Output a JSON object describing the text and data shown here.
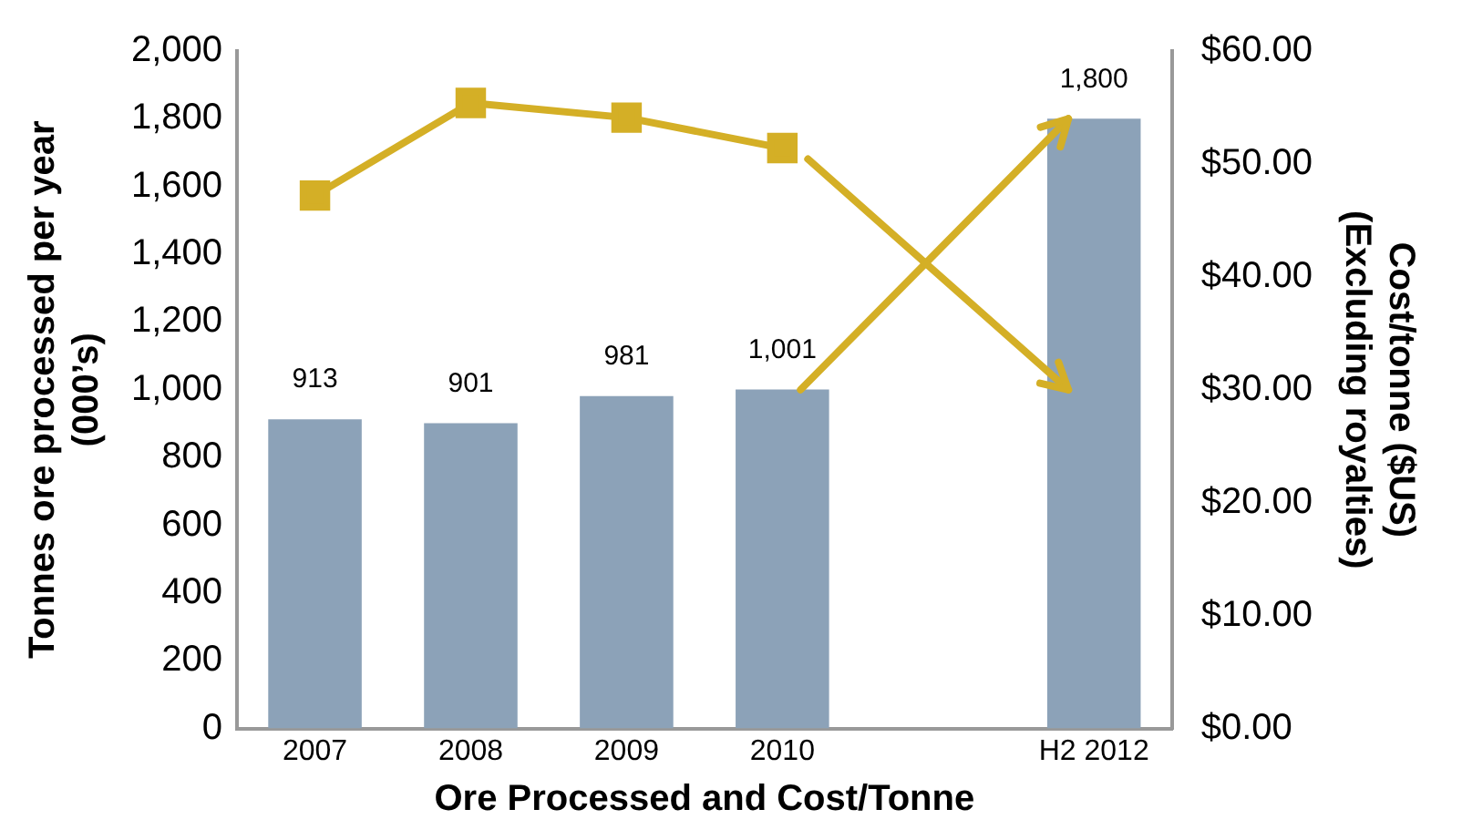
{
  "chart_data": {
    "type": "bar",
    "xlabel": "Ore Processed and Cost/Tonne",
    "ylabel": "Tonnes ore processed per year\n(000’s)",
    "y2label": "Cost/tonne ($US)\n(Excluding royalties)",
    "categories": [
      "2007",
      "2008",
      "2009",
      "2010",
      null,
      "H2 2012"
    ],
    "series": [
      {
        "color": "#8ca2b8",
        "values": [
          913,
          901,
          981,
          1001,
          null,
          1800
        ],
        "value_labels": [
          "913",
          "901",
          "981",
          "1,001",
          null,
          "1,800"
        ]
      },
      {
        "type": "line",
        "axis": "y2",
        "color": "#d4af26",
        "marker": "square",
        "values": [
          47.2,
          55.4,
          54.1,
          51.4,
          null,
          null
        ]
      }
    ],
    "ylim": [
      0,
      2000
    ],
    "yticks": [
      {
        "value": 0,
        "label": "0"
      },
      {
        "value": 200,
        "label": "200"
      },
      {
        "value": 400,
        "label": "400"
      },
      {
        "value": 600,
        "label": "600"
      },
      {
        "value": 800,
        "label": "800"
      },
      {
        "value": 1000,
        "label": "1,000"
      },
      {
        "value": 1200,
        "label": "1,200"
      },
      {
        "value": 1400,
        "label": "1,400"
      },
      {
        "value": 1600,
        "label": "1,600"
      },
      {
        "value": 1800,
        "label": "1,800"
      },
      {
        "value": 2000,
        "label": "2,000"
      }
    ],
    "y2lim": [
      0,
      60
    ],
    "y2ticks": [
      {
        "value": 0,
        "label": "$0.00"
      },
      {
        "value": 10,
        "label": "$10.00"
      },
      {
        "value": 20,
        "label": "$20.00"
      },
      {
        "value": 30,
        "label": "$30.00"
      },
      {
        "value": 40,
        "label": "$40.00"
      },
      {
        "value": 50,
        "label": "$50.00"
      },
      {
        "value": 60,
        "label": "$60.00"
      }
    ],
    "grid": false,
    "legend": false
  }
}
